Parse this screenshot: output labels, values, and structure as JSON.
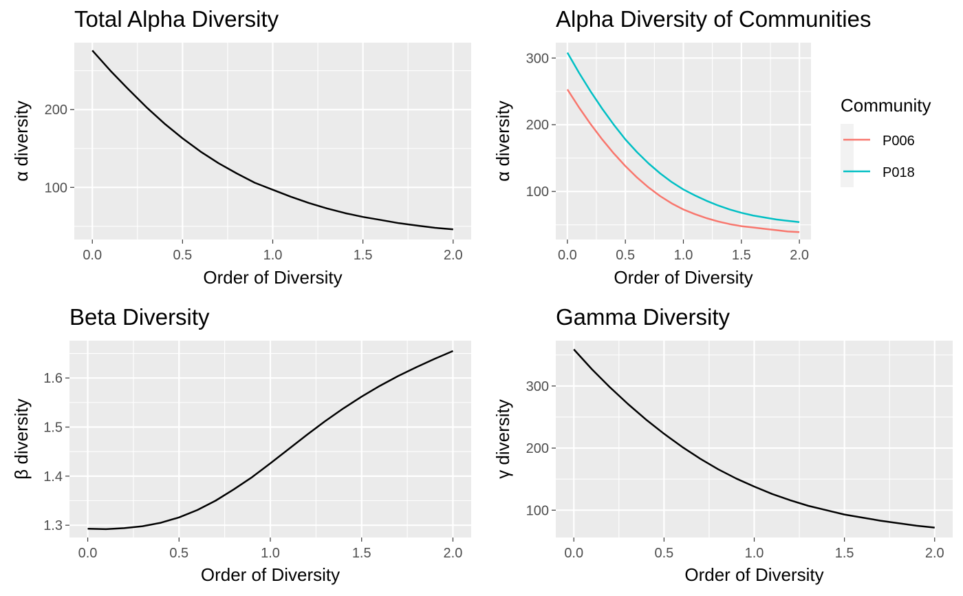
{
  "theme": {
    "panel_background": "#EBEBEB",
    "grid_color": "#FFFFFF",
    "tick_color": "#333333",
    "line_color": "#000000"
  },
  "legend": {
    "title": "Community",
    "entries": [
      {
        "label": "P006",
        "color": "#F8766D"
      },
      {
        "label": "P018",
        "color": "#00BFC4"
      }
    ]
  },
  "chart_data": [
    {
      "type": "line",
      "title": "Total Alpha Diversity",
      "xlabel": "Order of Diversity",
      "ylabel": "α diversity",
      "xlim": [
        -0.1,
        2.1
      ],
      "ylim": [
        33,
        286
      ],
      "grid": true,
      "x_ticks": [
        0.0,
        0.5,
        1.0,
        1.5,
        2.0
      ],
      "x_tick_labels": [
        "0.0",
        "0.5",
        "1.0",
        "1.5",
        "2.0"
      ],
      "y_ticks": [
        100,
        200
      ],
      "y_tick_labels": [
        "100",
        "200"
      ],
      "x": [
        0,
        0.1,
        0.2,
        0.3,
        0.4,
        0.5,
        0.6,
        0.7,
        0.8,
        0.9,
        1.0,
        1.1,
        1.2,
        1.3,
        1.4,
        1.5,
        1.6,
        1.7,
        1.8,
        1.9,
        2.0
      ],
      "series": [
        {
          "color": "#000000",
          "values": [
            276,
            250,
            226,
            203,
            182,
            163,
            146,
            131,
            118,
            106,
            97,
            88,
            80,
            73,
            67,
            62,
            58,
            54,
            51,
            48,
            46
          ]
        }
      ]
    },
    {
      "type": "line",
      "title": "Alpha Diversity of Communities",
      "xlabel": "Order of Diversity",
      "ylabel": "α diversity",
      "xlim": [
        -0.1,
        2.1
      ],
      "ylim": [
        28,
        323
      ],
      "grid": true,
      "legend_position": "right",
      "x_ticks": [
        0.0,
        0.5,
        1.0,
        1.5,
        2.0
      ],
      "x_tick_labels": [
        "0.0",
        "0.5",
        "1.0",
        "1.5",
        "2.0"
      ],
      "y_ticks": [
        100,
        200,
        300
      ],
      "y_tick_labels": [
        "100",
        "200",
        "300"
      ],
      "x": [
        0,
        0.1,
        0.2,
        0.3,
        0.4,
        0.5,
        0.6,
        0.7,
        0.8,
        0.9,
        1.0,
        1.1,
        1.2,
        1.3,
        1.4,
        1.5,
        1.6,
        1.7,
        1.8,
        1.9,
        2.0
      ],
      "series": [
        {
          "name": "P006",
          "color": "#F8766D",
          "values": [
            253,
            226,
            201,
            178,
            157,
            138,
            121,
            106,
            93,
            82,
            73,
            66,
            60,
            55,
            51,
            48,
            46,
            44,
            42,
            40,
            39
          ]
        },
        {
          "name": "P018",
          "color": "#00BFC4",
          "values": [
            308,
            278,
            250,
            224,
            200,
            178,
            159,
            142,
            127,
            114,
            103,
            94,
            86,
            79,
            73,
            68,
            64,
            61,
            58,
            56,
            54
          ]
        }
      ]
    },
    {
      "type": "line",
      "title": "Beta Diversity",
      "xlabel": "Order of Diversity",
      "ylabel": "β diversity",
      "xlim": [
        -0.1,
        2.1
      ],
      "ylim": [
        1.275,
        1.676
      ],
      "grid": true,
      "x_ticks": [
        0.0,
        0.5,
        1.0,
        1.5,
        2.0
      ],
      "x_tick_labels": [
        "0.0",
        "0.5",
        "1.0",
        "1.5",
        "2.0"
      ],
      "y_ticks": [
        1.3,
        1.4,
        1.5,
        1.6
      ],
      "y_tick_labels": [
        "1.3",
        "1.4",
        "1.5",
        "1.6"
      ],
      "x": [
        0,
        0.1,
        0.2,
        0.3,
        0.4,
        0.5,
        0.6,
        0.7,
        0.8,
        0.9,
        1.0,
        1.1,
        1.2,
        1.3,
        1.4,
        1.5,
        1.6,
        1.7,
        1.8,
        1.9,
        2.0
      ],
      "series": [
        {
          "color": "#000000",
          "values": [
            1.293,
            1.292,
            1.294,
            1.298,
            1.305,
            1.316,
            1.331,
            1.35,
            1.373,
            1.398,
            1.426,
            1.455,
            1.484,
            1.512,
            1.538,
            1.562,
            1.584,
            1.604,
            1.622,
            1.639,
            1.655
          ]
        }
      ]
    },
    {
      "type": "line",
      "title": "Gamma Diversity",
      "xlabel": "Order of Diversity",
      "ylabel": "γ diversity",
      "xlim": [
        -0.1,
        2.1
      ],
      "ylim": [
        56,
        373
      ],
      "grid": true,
      "x_ticks": [
        0.0,
        0.5,
        1.0,
        1.5,
        2.0
      ],
      "x_tick_labels": [
        "0.0",
        "0.5",
        "1.0",
        "1.5",
        "2.0"
      ],
      "y_ticks": [
        100,
        200,
        300
      ],
      "y_tick_labels": [
        "100",
        "200",
        "300"
      ],
      "x": [
        0,
        0.1,
        0.2,
        0.3,
        0.4,
        0.5,
        0.6,
        0.7,
        0.8,
        0.9,
        1.0,
        1.1,
        1.2,
        1.3,
        1.4,
        1.5,
        1.6,
        1.7,
        1.8,
        1.9,
        2.0
      ],
      "series": [
        {
          "color": "#000000",
          "values": [
            359,
            327,
            298,
            271,
            246,
            223,
            202,
            183,
            166,
            151,
            138,
            126,
            116,
            107,
            100,
            93,
            88,
            83,
            79,
            75,
            72
          ]
        }
      ]
    }
  ]
}
